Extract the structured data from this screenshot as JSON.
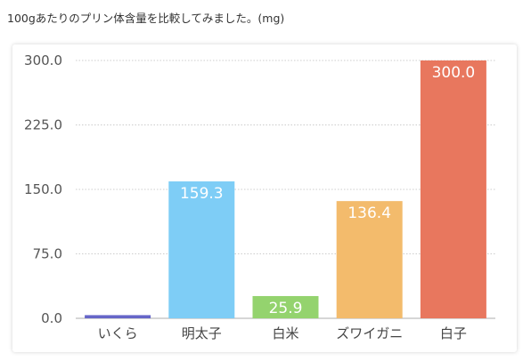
{
  "caption": "100gあたりのプリン体含量を比較してみました。(mg)",
  "chart_data": {
    "type": "bar",
    "title": "",
    "xlabel": "",
    "ylabel": "",
    "ylim": [
      0,
      300
    ],
    "y_ticks": [
      "0.0",
      "75.0",
      "150.0",
      "225.0",
      "300.0"
    ],
    "grid": true,
    "categories": [
      "いくら",
      "明太子",
      "白米",
      "ズワイガニ",
      "白子"
    ],
    "values": [
      3.7,
      159.3,
      25.9,
      136.4,
      300.0
    ],
    "value_labels": [
      "",
      "159.3",
      "25.9",
      "136.4",
      "300.0"
    ],
    "colors": [
      "#6666c8",
      "#7ecdf6",
      "#94d36e",
      "#f3bb6c",
      "#e8775e"
    ]
  }
}
